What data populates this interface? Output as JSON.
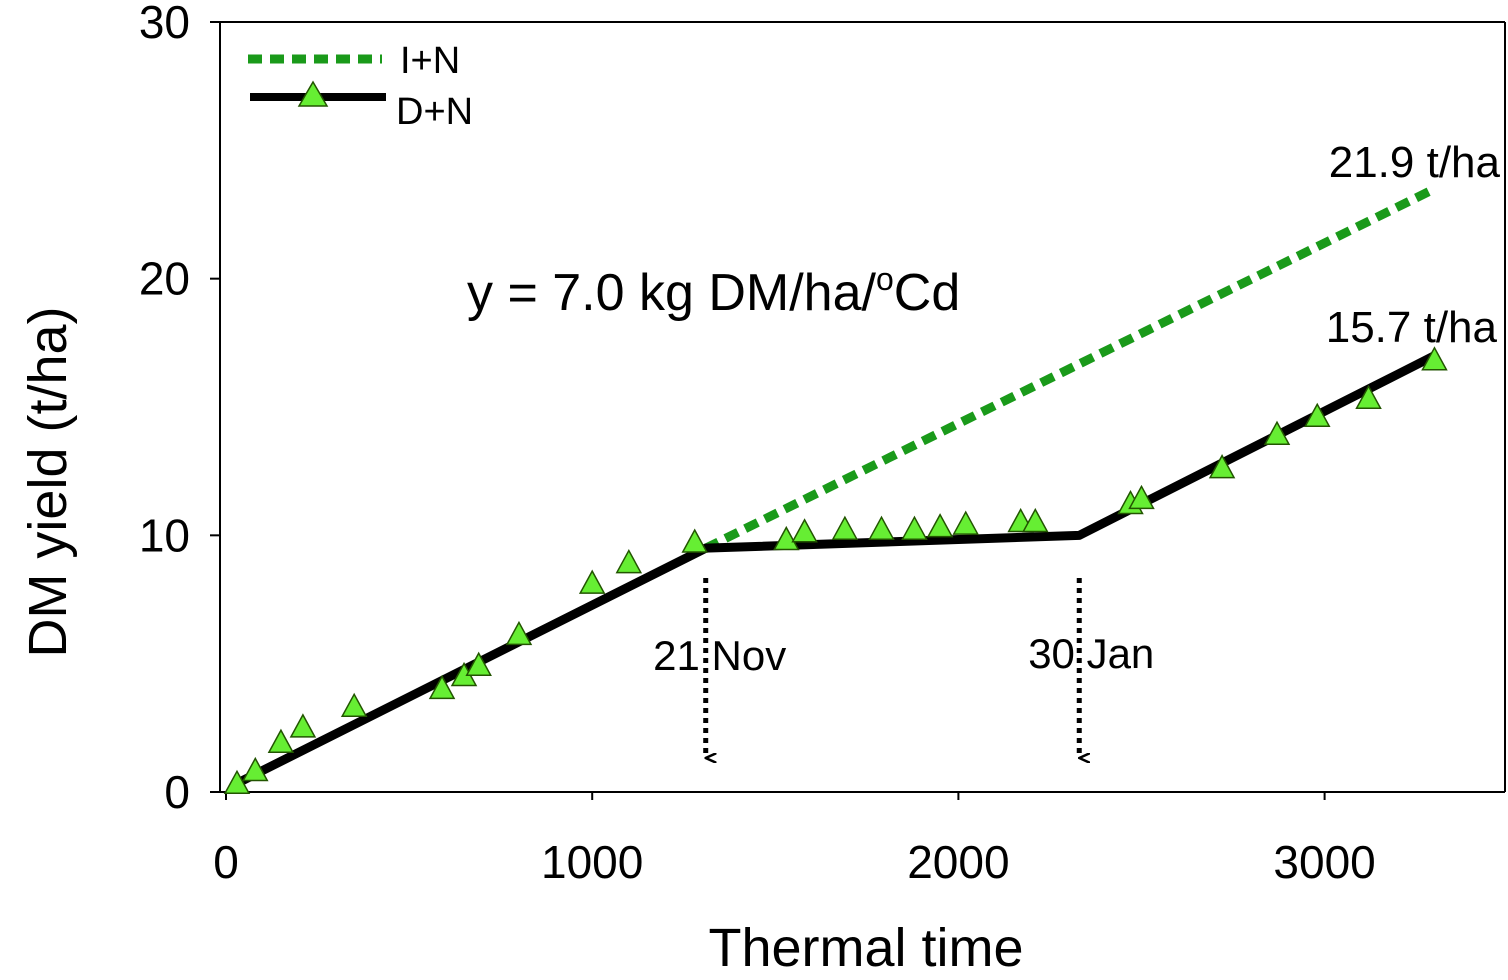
{
  "chart_data": {
    "type": "line",
    "xlabel": "Thermal time",
    "ylabel": "DM yield (t/ha)",
    "xlim": [
      0,
      3500
    ],
    "ylim": [
      0,
      30
    ],
    "xticks": [
      0,
      1000,
      2000,
      3000
    ],
    "yticks": [
      0,
      10,
      20,
      30
    ],
    "grid": false,
    "legend_position": "top-left",
    "equation": {
      "prefix": "y = 7.0 kg DM/ha/",
      "sup": "o",
      "suffix": "Cd"
    },
    "series": [
      {
        "name": "I+N",
        "style": "dotted",
        "color": "#1a9a1a",
        "x": [
          1310,
          3300
        ],
        "y": [
          9.5,
          23.5
        ],
        "end_label": "21.9 t/ha"
      },
      {
        "name": "D+N",
        "style": "solid",
        "color": "#000000",
        "marker": "triangle",
        "marker_color": "#66ee33",
        "x": [
          25,
          1310,
          2330,
          3300
        ],
        "y": [
          0.3,
          9.5,
          10.0,
          17.0
        ],
        "end_label": "15.7 t/ha"
      }
    ],
    "observations": {
      "x": [
        30,
        80,
        150,
        210,
        350,
        590,
        650,
        690,
        800,
        1000,
        1100,
        1280,
        1530,
        1580,
        1690,
        1790,
        1880,
        1950,
        2020,
        2170,
        2210,
        2470,
        2500,
        2720,
        2870,
        2980,
        3120,
        3300
      ],
      "y": [
        0.3,
        0.8,
        1.9,
        2.5,
        3.3,
        4.0,
        4.5,
        4.9,
        6.1,
        8.1,
        8.9,
        9.7,
        9.8,
        10.1,
        10.2,
        10.2,
        10.2,
        10.3,
        10.4,
        10.5,
        10.5,
        11.2,
        11.4,
        12.6,
        13.9,
        14.6,
        15.3,
        16.8
      ]
    },
    "annotations": [
      {
        "text": "21 Nov",
        "x": 1310
      },
      {
        "text": "30 Jan",
        "x": 2330
      }
    ]
  }
}
